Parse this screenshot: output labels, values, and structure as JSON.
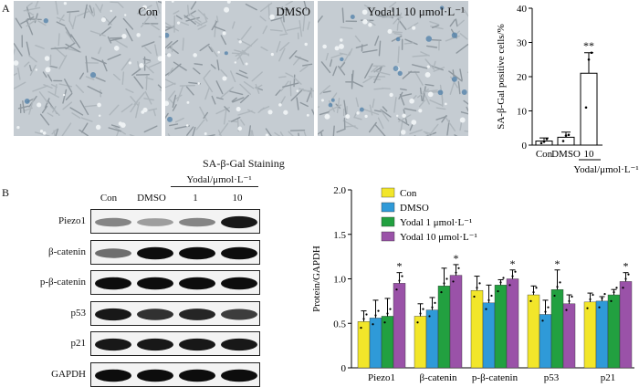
{
  "panel_a": {
    "letter": "A",
    "images": [
      {
        "label": "Con"
      },
      {
        "label": "DMSO"
      },
      {
        "label": "Yodal1 10 μmol·L⁻¹"
      }
    ],
    "caption": "SA-β-Gal Staining"
  },
  "panel_b": {
    "letter": "B",
    "header": {
      "lanes": [
        "Con",
        "DMSO",
        "1",
        "10"
      ],
      "group_label": "Yodal/μmol·L⁻¹"
    },
    "blots": [
      "Piezo1",
      "β-catenin",
      "p-β-catenin",
      "p53",
      "p21",
      "GAPDH"
    ]
  },
  "chart_data": [
    {
      "type": "bar",
      "ylabel": "SA-β-Gal positive cells/%",
      "ylim": [
        0,
        40
      ],
      "yticks": [
        "0",
        "10",
        "20",
        "30",
        "40"
      ],
      "categories": [
        "Con",
        "DMSO",
        "10"
      ],
      "group_label": "Yodal/μmol·L⁻¹",
      "values": [
        1.2,
        2.3,
        21
      ],
      "errors": [
        0.9,
        1.5,
        6
      ],
      "points": [
        [
          0.6,
          1.0,
          1.8
        ],
        [
          1.2,
          2.8,
          3.0
        ],
        [
          11,
          25,
          27
        ]
      ],
      "annotations": [
        {
          "category": "10",
          "text": "**"
        }
      ]
    },
    {
      "type": "bar",
      "ylabel": "Protein/GAPDH",
      "ylim": [
        0,
        2.0
      ],
      "yticks": [
        "0",
        "0.5",
        "1.0",
        "1.5",
        "2.0"
      ],
      "categories": [
        "Piezo1",
        "β-catenin",
        "p-β-catenin",
        "p53",
        "p21"
      ],
      "series": [
        {
          "name": "Con",
          "color": "#f2e62a",
          "values": [
            0.52,
            0.58,
            0.87,
            0.82,
            0.74
          ],
          "errors": [
            0.12,
            0.14,
            0.16,
            0.1,
            0.1
          ]
        },
        {
          "name": "DMSO",
          "color": "#2f9ad8",
          "values": [
            0.56,
            0.65,
            0.73,
            0.6,
            0.75
          ],
          "errors": [
            0.2,
            0.14,
            0.2,
            0.16,
            0.05
          ]
        },
        {
          "name": "Yodal 1 μmol·L⁻¹",
          "color": "#22a040",
          "values": [
            0.58,
            0.92,
            0.93,
            0.88,
            0.82
          ],
          "errors": [
            0.2,
            0.2,
            0.06,
            0.22,
            0.06
          ]
        },
        {
          "name": "Yodal 10 μmol·L⁻¹",
          "color": "#9a52a8",
          "values": [
            0.95,
            1.04,
            1.0,
            0.72,
            0.97
          ],
          "errors": [
            0.12,
            0.12,
            0.1,
            0.1,
            0.1
          ]
        }
      ],
      "annotations": [
        {
          "category": "Piezo1",
          "series": "Yodal 10 μmol·L⁻¹",
          "text": "*"
        },
        {
          "category": "β-catenin",
          "series": "Yodal 10 μmol·L⁻¹",
          "text": "*"
        },
        {
          "category": "p-β-catenin",
          "series": "Yodal 10 μmol·L⁻¹",
          "text": "*"
        },
        {
          "category": "p53",
          "series": "Yodal 1 μmol·L⁻¹",
          "text": "*"
        },
        {
          "category": "p21",
          "series": "Yodal 10 μmol·L⁻¹",
          "text": "*"
        }
      ],
      "legend_position": "top"
    }
  ]
}
